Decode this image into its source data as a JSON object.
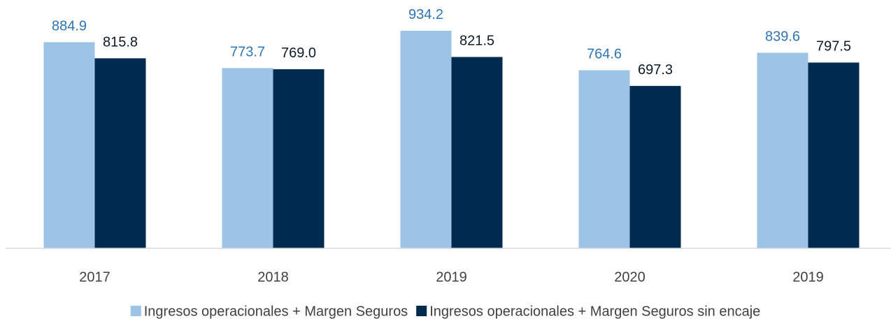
{
  "chart_data": {
    "type": "bar",
    "categories": [
      "2017",
      "2018",
      "2019",
      "2020",
      "2019"
    ],
    "series": [
      {
        "name": "Ingresos operacionales + Margen Seguros",
        "color": "#9dc3e6",
        "label_color": "#2e75b6",
        "values": [
          884.9,
          773.7,
          934.2,
          764.6,
          839.6
        ],
        "value_labels": [
          "884.9",
          "773.7",
          "934.2",
          "764.6",
          "839.6"
        ]
      },
      {
        "name": "Ingresos operacionales + Margen Seguros sin encaje",
        "color": "#002b4f",
        "label_color": "#0d1b2a",
        "values": [
          815.8,
          769.0,
          821.5,
          697.3,
          797.5
        ],
        "value_labels": [
          "815.8",
          "769.0",
          "821.5",
          "697.3",
          "797.5"
        ]
      }
    ],
    "ylim": [
      0,
      1000
    ],
    "legend": "bottom"
  }
}
